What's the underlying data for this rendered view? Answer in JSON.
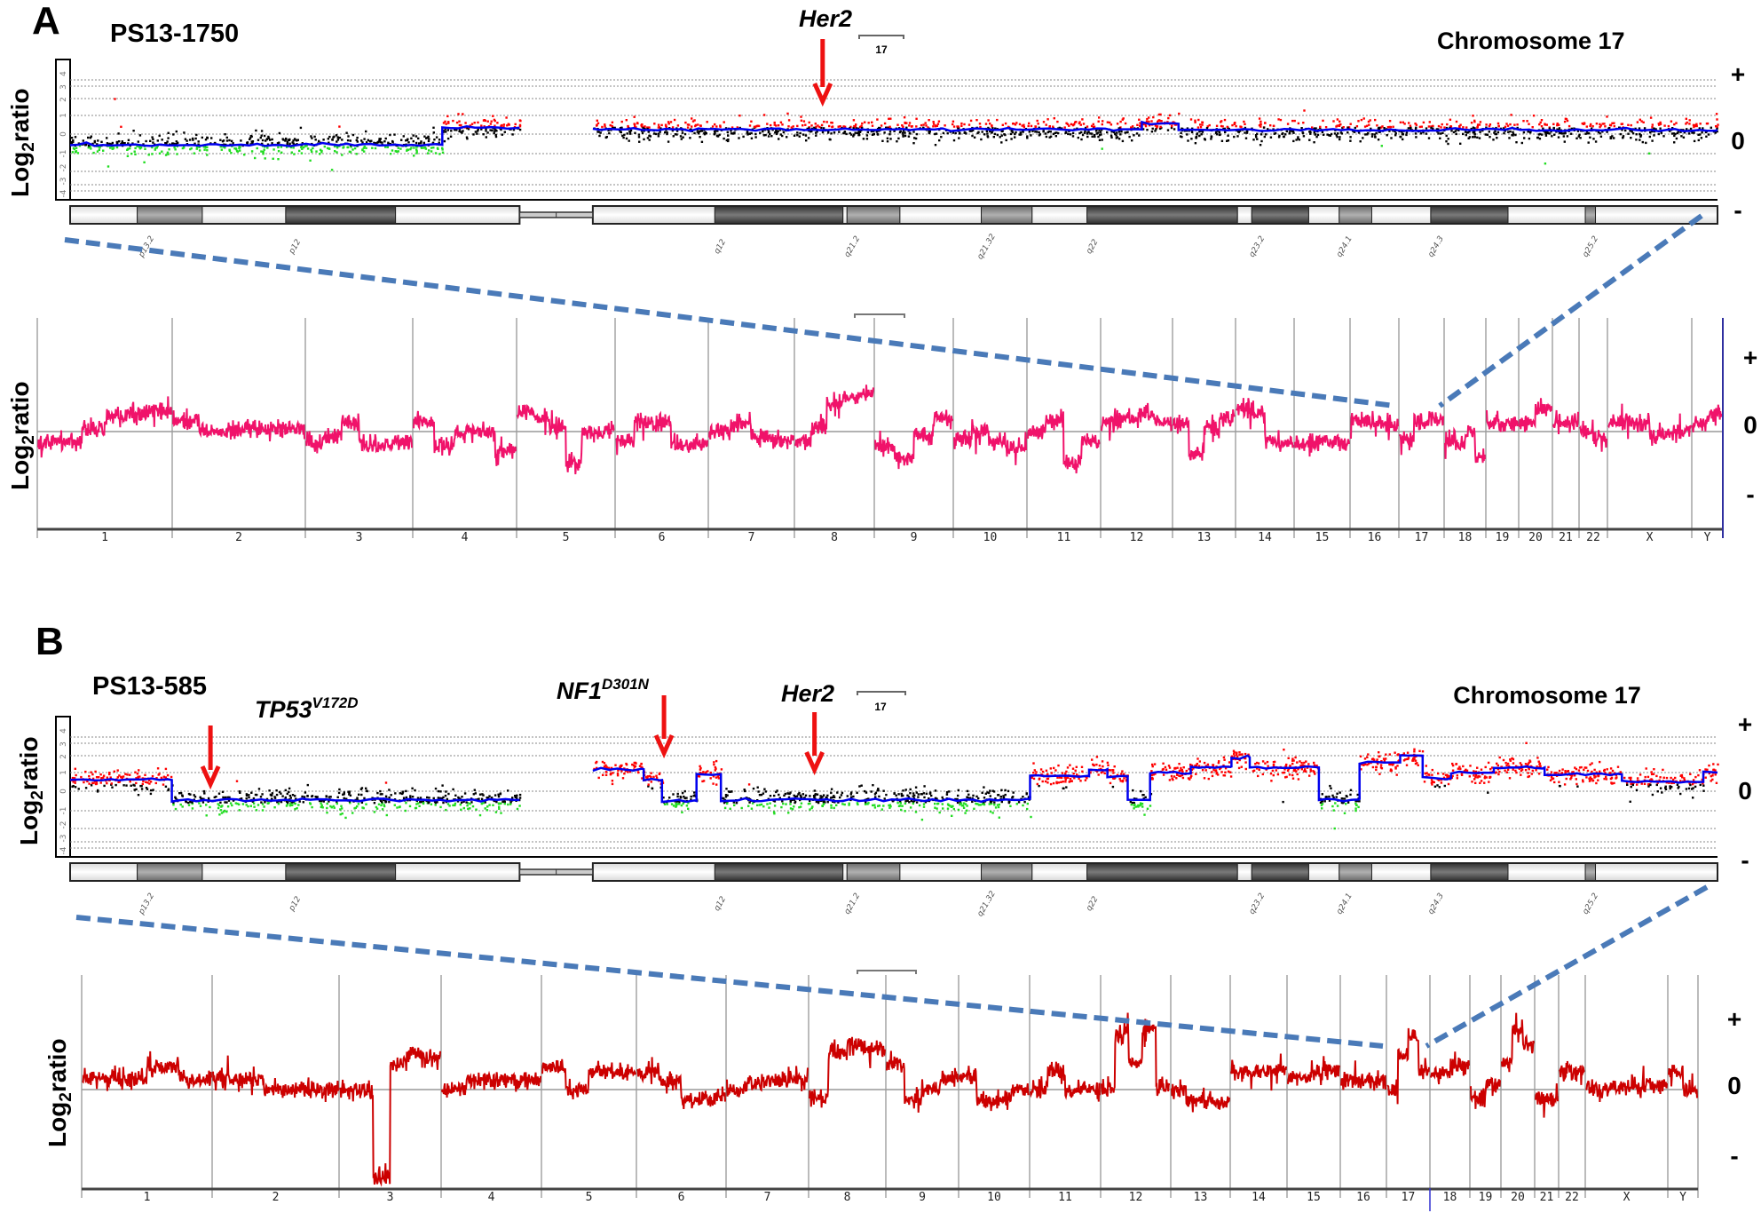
{
  "panels": [
    {
      "letter": "A",
      "sample": "PS13-1750",
      "chromosome_title": "Chromosome 17",
      "bracket_label": "17",
      "ylabel": {
        "base": "Log",
        "sub": "2",
        "rest": "ratio"
      },
      "markers": {
        "plus": "+",
        "zero": "0",
        "minus": "-"
      },
      "genes": [
        {
          "name": "Her2",
          "mutation": ""
        }
      ]
    },
    {
      "letter": "B",
      "sample": "PS13-585",
      "chromosome_title": "Chromosome 17",
      "bracket_label": "17",
      "ylabel": {
        "base": "Log",
        "sub": "2",
        "rest": "ratio"
      },
      "markers": {
        "plus": "+",
        "zero": "0",
        "minus": "-"
      },
      "genes": [
        {
          "name": "TP53",
          "mutation": "V172D"
        },
        {
          "name": "NF1",
          "mutation": "D301N"
        },
        {
          "name": "Her2",
          "mutation": ""
        }
      ]
    }
  ],
  "colors": {
    "gain_points": "#ff0000",
    "loss_points": "#22dd22",
    "neutral_points": "#000000",
    "segment_line": "#0000ee",
    "genome_trace_A": "#f0126a",
    "genome_trace_B": "#cc0000",
    "zoom_guide": "#4a7ab8"
  },
  "chart_data": [
    {
      "panel": "A",
      "type": "scatter",
      "chromosome": "17",
      "x_unit": "Mb",
      "xlim": [
        0,
        81
      ],
      "ylim": [
        -4,
        4
      ],
      "y_ticks": [
        "4",
        "3",
        "2",
        "1",
        "0",
        "-1",
        "-2",
        "-3",
        "-4"
      ],
      "grid": true,
      "gene_markers": [
        {
          "name": "Her2",
          "position_mb": 37.0
        }
      ],
      "segments": [
        [
          0,
          18.3,
          -0.55
        ],
        [
          18.3,
          22.1,
          0.35
        ],
        [
          25.7,
          52.7,
          0.25
        ],
        [
          52.7,
          54.5,
          0.55
        ],
        [
          54.5,
          81,
          0.22
        ]
      ],
      "ideogram": {
        "bands": [
          [
            0,
            3.3,
            "w"
          ],
          [
            3.3,
            6.5,
            "g"
          ],
          [
            6.5,
            10.6,
            "w"
          ],
          [
            10.6,
            16.0,
            "d"
          ],
          [
            16.0,
            22.1,
            "w"
          ],
          [
            25.7,
            31.7,
            "w"
          ],
          [
            31.7,
            38.0,
            "d"
          ],
          [
            38.0,
            38.2,
            "w"
          ],
          [
            38.2,
            40.8,
            "g"
          ],
          [
            40.8,
            44.8,
            "w"
          ],
          [
            44.8,
            47.3,
            "g"
          ],
          [
            47.3,
            50.0,
            "w"
          ],
          [
            50.0,
            57.4,
            "d"
          ],
          [
            57.4,
            58.1,
            "w"
          ],
          [
            58.1,
            60.9,
            "d"
          ],
          [
            60.9,
            62.4,
            "w"
          ],
          [
            62.4,
            64.0,
            "g"
          ],
          [
            64.0,
            66.9,
            "w"
          ],
          [
            66.9,
            70.7,
            "d"
          ],
          [
            70.7,
            74.5,
            "w"
          ],
          [
            74.5,
            75.0,
            "g"
          ],
          [
            75.0,
            81.0,
            "w"
          ]
        ],
        "centromere": [
          22.1,
          25.7
        ],
        "labels": [
          {
            "name": "p13.2",
            "pos_mb": 3.5
          },
          {
            "name": "p12",
            "pos_mb": 10.8
          },
          {
            "name": "q12",
            "pos_mb": 31.7
          },
          {
            "name": "q21.2",
            "pos_mb": 38.2
          },
          {
            "name": "q21.32",
            "pos_mb": 44.8
          },
          {
            "name": "q22",
            "pos_mb": 50.0
          },
          {
            "name": "q23.2",
            "pos_mb": 58.1
          },
          {
            "name": "q24.1",
            "pos_mb": 62.4
          },
          {
            "name": "q24.3",
            "pos_mb": 66.9
          },
          {
            "name": "q25.2",
            "pos_mb": 74.5
          }
        ]
      }
    },
    {
      "panel": "A",
      "type": "line",
      "chromosomes": [
        "1",
        "2",
        "3",
        "4",
        "5",
        "6",
        "7",
        "8",
        "9",
        "10",
        "11",
        "12",
        "13",
        "14",
        "15",
        "16",
        "17",
        "18",
        "19",
        "20",
        "21",
        "22",
        "X",
        "Y"
      ],
      "segment_levels": [
        [
          -0.11,
          -0.11,
          0.03,
          0.16,
          0.2,
          0.23
        ],
        [
          0.12,
          0.0,
          0.02,
          0.03,
          0.03
        ],
        [
          -0.12,
          -0.05,
          0.1,
          -0.15,
          -0.15,
          -0.12
        ],
        [
          0.1,
          -0.15,
          0.0,
          0.0,
          -0.2
        ],
        [
          0.22,
          0.15,
          0.05,
          -0.35,
          0.0,
          0.0
        ],
        [
          -0.1,
          0.13,
          0.1,
          -0.17,
          -0.15
        ],
        [
          0.0,
          0.1,
          -0.05,
          -0.1
        ],
        [
          -0.12,
          0.03,
          0.3,
          0.37,
          0.42
        ],
        [
          -0.15,
          -0.3,
          -0.05,
          0.15
        ],
        [
          -0.1,
          0.0,
          -0.12,
          -0.2
        ],
        [
          0.0,
          0.12,
          -0.35,
          -0.1
        ],
        [
          0.1,
          0.15,
          0.18,
          0.1
        ],
        [
          0.1,
          -0.25,
          0.05,
          0.15
        ],
        [
          0.25,
          0.2,
          -0.1,
          -0.15
        ],
        [
          -0.15,
          -0.12,
          -0.13
        ],
        [
          0.12,
          0.1,
          0.08
        ],
        [
          -0.1,
          0.13,
          0.15
        ],
        [
          -0.1,
          -0.15,
          0.0,
          -0.3
        ],
        [
          0.1,
          0.08
        ],
        [
          0.1,
          0.25
        ],
        [
          0.1
        ],
        [
          0.0,
          -0.1
        ],
        [
          0.1,
          0.1,
          -0.05,
          0.0
        ],
        [
          0.1,
          0.2
        ]
      ]
    },
    {
      "panel": "B",
      "type": "scatter",
      "chromosome": "17",
      "x_unit": "Mb",
      "xlim": [
        0,
        81
      ],
      "ylim": [
        -4,
        4
      ],
      "y_ticks": [
        "4",
        "3",
        "2",
        "1",
        "0",
        "-1",
        "-2",
        "-3",
        "-4"
      ],
      "grid": true,
      "gene_markers": [
        {
          "name": "TP53",
          "position_mb": 6.9
        },
        {
          "name": "NF1",
          "position_mb": 29.2
        },
        {
          "name": "Her2",
          "position_mb": 36.6
        }
      ],
      "segments": [
        [
          0,
          5.0,
          0.6
        ],
        [
          5.0,
          22.1,
          -0.45
        ],
        [
          25.7,
          28.2,
          1.2
        ],
        [
          28.2,
          29.1,
          0.6
        ],
        [
          29.1,
          30.8,
          -0.5
        ],
        [
          30.8,
          32.0,
          0.9
        ],
        [
          32.0,
          47.2,
          -0.45
        ],
        [
          47.2,
          50.1,
          0.8
        ],
        [
          50.1,
          51.0,
          1.2
        ],
        [
          51.0,
          52.0,
          0.8
        ],
        [
          52.0,
          53.1,
          -0.45
        ],
        [
          53.1,
          55.1,
          1.0
        ],
        [
          55.1,
          57.1,
          1.3
        ],
        [
          57.1,
          58.0,
          1.9
        ],
        [
          58.0,
          61.4,
          1.3
        ],
        [
          61.4,
          63.4,
          -0.45
        ],
        [
          63.4,
          65.4,
          1.6
        ],
        [
          65.4,
          66.5,
          2.0
        ],
        [
          66.5,
          67.9,
          0.7
        ],
        [
          67.9,
          70.0,
          1.0
        ],
        [
          70.0,
          72.5,
          1.3
        ],
        [
          72.5,
          76.3,
          0.9
        ],
        [
          76.3,
          80.3,
          0.5
        ],
        [
          80.3,
          81,
          1.0
        ]
      ],
      "ideogram": {
        "bands": [
          [
            0,
            3.3,
            "w"
          ],
          [
            3.3,
            6.5,
            "g"
          ],
          [
            6.5,
            10.6,
            "w"
          ],
          [
            10.6,
            16.0,
            "d"
          ],
          [
            16.0,
            22.1,
            "w"
          ],
          [
            25.7,
            31.7,
            "w"
          ],
          [
            31.7,
            38.0,
            "d"
          ],
          [
            38.0,
            38.2,
            "w"
          ],
          [
            38.2,
            40.8,
            "g"
          ],
          [
            40.8,
            44.8,
            "w"
          ],
          [
            44.8,
            47.3,
            "g"
          ],
          [
            47.3,
            50.0,
            "w"
          ],
          [
            50.0,
            57.4,
            "d"
          ],
          [
            57.4,
            58.1,
            "w"
          ],
          [
            58.1,
            60.9,
            "d"
          ],
          [
            60.9,
            62.4,
            "w"
          ],
          [
            62.4,
            64.0,
            "g"
          ],
          [
            64.0,
            66.9,
            "w"
          ],
          [
            66.9,
            70.7,
            "d"
          ],
          [
            70.7,
            74.5,
            "w"
          ],
          [
            74.5,
            75.0,
            "g"
          ],
          [
            75.0,
            81.0,
            "w"
          ]
        ],
        "centromere": [
          22.1,
          25.7
        ],
        "labels": [
          {
            "name": "p13.2",
            "pos_mb": 3.5
          },
          {
            "name": "p12",
            "pos_mb": 10.8
          },
          {
            "name": "q12",
            "pos_mb": 31.7
          },
          {
            "name": "q21.2",
            "pos_mb": 38.2
          },
          {
            "name": "q21.32",
            "pos_mb": 44.8
          },
          {
            "name": "q22",
            "pos_mb": 50.0
          },
          {
            "name": "q23.2",
            "pos_mb": 58.1
          },
          {
            "name": "q24.1",
            "pos_mb": 62.4
          },
          {
            "name": "q24.3",
            "pos_mb": 66.9
          },
          {
            "name": "q25.2",
            "pos_mb": 74.5
          }
        ]
      }
    },
    {
      "panel": "B",
      "type": "line",
      "chromosomes": [
        "1",
        "2",
        "3",
        "4",
        "5",
        "6",
        "7",
        "8",
        "9",
        "10",
        "11",
        "12",
        "13",
        "14",
        "15",
        "16",
        "17",
        "18",
        "19",
        "20",
        "21",
        "22",
        "X",
        "Y"
      ],
      "segment_levels": [
        [
          0.12,
          0.12,
          0.25,
          0.12
        ],
        [
          0.12,
          0.12,
          0.0,
          0.0,
          0.0
        ],
        [
          0.0,
          -0.02,
          -1.0,
          0.3,
          0.4,
          0.35
        ],
        [
          0.0,
          0.1,
          0.1,
          0.1
        ],
        [
          0.25,
          0.0,
          0.2,
          0.2
        ],
        [
          0.2,
          0.1,
          -0.12,
          -0.1
        ],
        [
          0.0,
          0.1,
          0.1,
          0.12
        ],
        [
          -0.1,
          0.4,
          0.5,
          0.45
        ],
        [
          0.3,
          -0.1,
          0.0,
          0.12
        ],
        [
          0.15,
          -0.12,
          -0.12,
          0.0
        ],
        [
          0.0,
          0.2,
          0.0,
          0.0
        ],
        [
          0.0,
          0.6,
          0.3,
          0.7,
          0.05
        ],
        [
          0.0,
          -0.12,
          -0.12,
          -0.15
        ],
        [
          0.2,
          0.2,
          0.22
        ],
        [
          0.15,
          0.15,
          0.22
        ],
        [
          0.1,
          0.1
        ],
        [
          0.0,
          0.4,
          0.6,
          0.2
        ],
        [
          0.2,
          0.25
        ],
        [
          -0.1,
          0.05
        ],
        [
          0.3,
          0.7,
          0.5
        ],
        [
          -0.1
        ],
        [
          0.2,
          0.2
        ],
        [
          0.0,
          0.03,
          0.03,
          0.05
        ],
        [
          0.2,
          0.0
        ]
      ]
    }
  ]
}
